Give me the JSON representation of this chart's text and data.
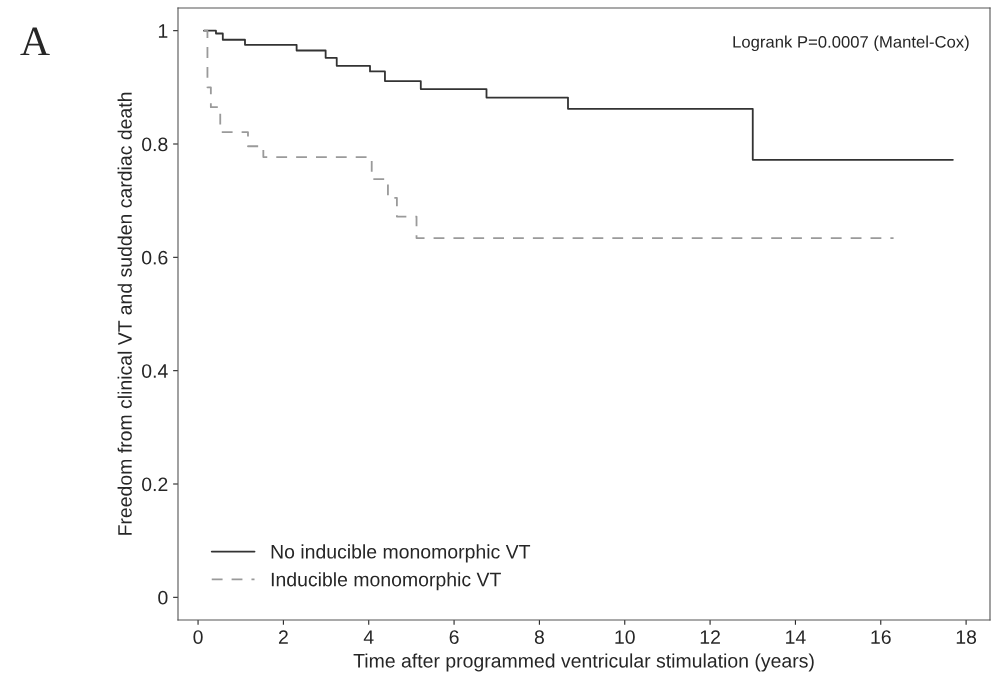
{
  "chart_data": {
    "type": "step",
    "xlabel": "Time after programmed ventricular stimulation (years)",
    "ylabel": "Freedom from clinical VT and sudden cardiac death",
    "annotations": [
      "Logrank P=0.0007 (Mantel-Cox)",
      "A"
    ],
    "series": [
      {
        "name": "No inducible monomorphic VT",
        "color": "#333333",
        "line_style": "solid",
        "x": [
          0.14,
          0.42,
          0.58,
          1.1,
          2.31,
          2.99,
          3.25,
          4.03,
          4.38,
          5.22,
          6.76,
          8.67,
          13.0,
          17.69
        ],
        "values": [
          1.0,
          0.995,
          0.984,
          0.975,
          0.965,
          0.952,
          0.938,
          0.928,
          0.911,
          0.897,
          0.882,
          0.862,
          0.772,
          0.772
        ]
      },
      {
        "name": "Inducible monomorphic VT",
        "color": "#9a9a9a",
        "line_style": "dashed",
        "x": [
          0.14,
          0.22,
          0.3,
          0.52,
          1.17,
          1.53,
          4.07,
          4.45,
          4.66,
          5.12,
          16.3
        ],
        "values": [
          1.0,
          0.9,
          0.865,
          0.821,
          0.796,
          0.777,
          0.738,
          0.705,
          0.672,
          0.634,
          0.634
        ]
      }
    ],
    "xlim": [
      -0.47,
      18.56
    ],
    "xticks": [
      0,
      2,
      4,
      6,
      8,
      10,
      12,
      14,
      16,
      18
    ],
    "ylim": [
      -0.04,
      1.04
    ],
    "yticks": [
      0,
      0.2,
      0.4,
      0.6,
      0.8,
      1
    ],
    "legend": "bottom left",
    "grid": false
  }
}
